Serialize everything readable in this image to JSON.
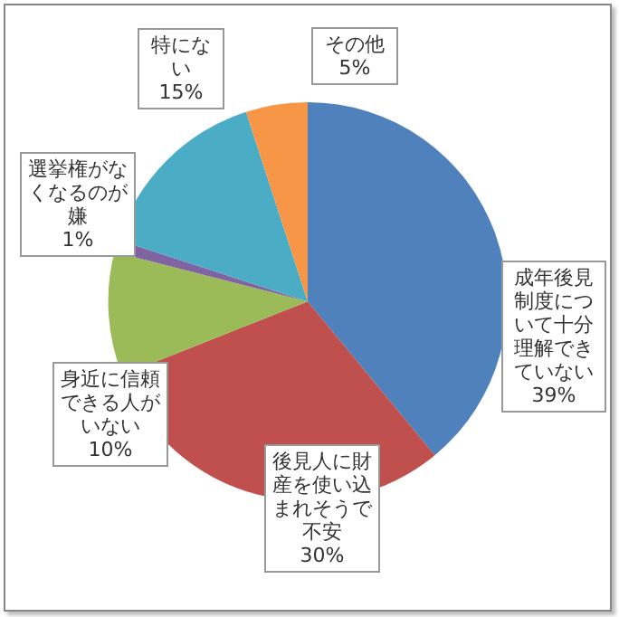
{
  "chart_data": {
    "type": "pie",
    "categories": [
      "成年後見制度について十分理解できていない",
      "後見人に財産を使い込まれそうで不安",
      "身近に信頼できる人がいない",
      "選挙権がなくなるのが嫌",
      "特にない",
      "その他"
    ],
    "values": [
      39,
      30,
      10,
      1,
      15,
      5
    ],
    "colors": [
      "#4f81bd",
      "#c0504d",
      "#9bbb59",
      "#8064a2",
      "#4bacc6",
      "#f79646"
    ],
    "value_labels": [
      "39%",
      "30%",
      "10%",
      "1%",
      "15%",
      "5%"
    ],
    "legend": false
  }
}
